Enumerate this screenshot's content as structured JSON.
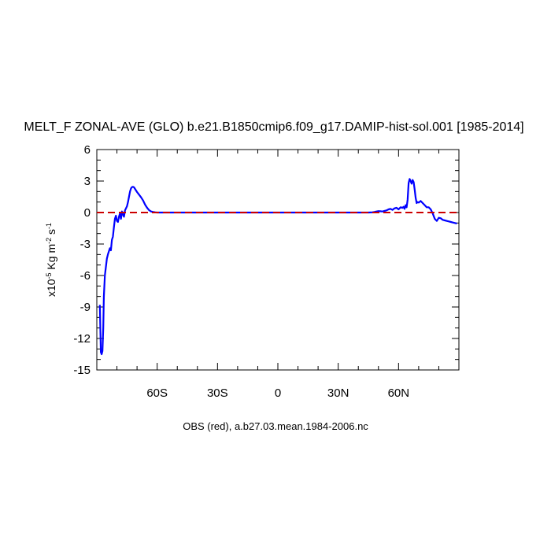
{
  "chart_data": {
    "type": "line",
    "title": "MELT_F ZONAL-AVE (GLO) b.e21.B1850cmip6.f09_g17.DAMIP-hist-sol.001 [1985-2014]",
    "ylabel": "x10",
    "ylabel_exponent": "-5",
    "ylabel_units": " Kg m",
    "ylabel_units_exponent": "-2",
    "ylabel_units_tail": " s",
    "ylabel_units_tail_exponent": "-1",
    "xlim": [
      -90,
      90
    ],
    "ylim": [
      -15,
      6
    ],
    "x_ticks": [
      {
        "value": -60,
        "label": "60S"
      },
      {
        "value": -30,
        "label": "30S"
      },
      {
        "value": 0,
        "label": "0"
      },
      {
        "value": 30,
        "label": "30N"
      },
      {
        "value": 60,
        "label": "60N"
      }
    ],
    "y_ticks": [
      {
        "value": 6,
        "label": "6"
      },
      {
        "value": 3,
        "label": "3"
      },
      {
        "value": 0,
        "label": "0"
      },
      {
        "value": -3,
        "label": "-3"
      },
      {
        "value": -6,
        "label": "-6"
      },
      {
        "value": -9,
        "label": "-9"
      },
      {
        "value": -12,
        "label": "-12"
      },
      {
        "value": -15,
        "label": "-15"
      }
    ],
    "footer": "OBS (red), a.b27.03.mean.1984-2006.nc",
    "series": [
      {
        "color": "#0000ff",
        "style": "solid",
        "x": [
          -88.5,
          -88.0,
          -87.6,
          -87.2,
          -86.8,
          -86.5,
          -86.0,
          -85.5,
          -85.0,
          -84.5,
          -84.0,
          -83.5,
          -83.0,
          -82.5,
          -82.0,
          -81.5,
          -81.0,
          -80.5,
          -80.0,
          -79.5,
          -79.0,
          -78.5,
          -78.0,
          -77.5,
          -77.0,
          -76.5,
          -76.0,
          -75.5,
          -75.0,
          -74.5,
          -74.0,
          -73.5,
          -73.0,
          -72.5,
          -72.0,
          -71.5,
          -71.0,
          -70.5,
          -70.0,
          -69.0,
          -68.0,
          -67.0,
          -66.0,
          -65.0,
          -64.0,
          -63.0,
          -62.0,
          -61.0,
          -60.0,
          -59.0,
          -58.0,
          -57.0,
          -56.0,
          -55.0,
          -54.0,
          -53.0,
          -52.0,
          -50.0,
          -40.0,
          -20.0,
          0.0,
          20.0,
          40.0,
          45.0,
          47.0,
          48.0,
          49.0,
          50.0,
          51.0,
          52.0,
          53.0,
          54.0,
          55.0,
          56.0,
          57.0,
          58.0,
          59.0,
          60.0,
          61.0,
          62.0,
          62.5,
          63.0,
          63.5,
          64.0,
          64.5,
          65.0,
          65.5,
          66.0,
          66.5,
          67.0,
          67.5,
          68.0,
          68.5,
          69.0,
          69.5,
          70.0,
          71.0,
          72.0,
          73.0,
          74.0,
          75.0,
          76.0,
          77.0,
          78.0,
          79.0,
          80.0,
          81.0,
          82.0,
          83.0,
          84.0,
          85.0,
          86.0,
          87.0,
          88.0,
          89.0
        ],
        "y": [
          -8.8,
          -13.3,
          -13.5,
          -13.2,
          -11.0,
          -8.0,
          -6.0,
          -5.2,
          -4.4,
          -4.0,
          -3.7,
          -3.4,
          -3.6,
          -2.6,
          -2.3,
          -1.4,
          -0.6,
          -0.3,
          -0.8,
          -0.9,
          -0.4,
          -0.1,
          -0.6,
          0.1,
          -0.2,
          -0.4,
          0.2,
          0.4,
          0.6,
          1.0,
          1.5,
          2.0,
          2.3,
          2.42,
          2.45,
          2.4,
          2.25,
          2.1,
          1.95,
          1.7,
          1.45,
          1.15,
          0.75,
          0.45,
          0.22,
          0.1,
          0.05,
          0.02,
          0.0,
          0.0,
          0.0,
          0.0,
          0.0,
          0.0,
          0.0,
          0.0,
          0.0,
          0.0,
          0.0,
          0.0,
          0.0,
          0.0,
          0.0,
          0.0,
          0.02,
          0.05,
          0.1,
          0.13,
          0.12,
          0.1,
          0.15,
          0.2,
          0.3,
          0.35,
          0.25,
          0.4,
          0.45,
          0.3,
          0.5,
          0.45,
          0.55,
          0.35,
          0.7,
          0.5,
          1.2,
          2.8,
          3.2,
          3.0,
          2.75,
          3.1,
          2.9,
          2.2,
          1.4,
          0.9,
          1.0,
          0.95,
          1.1,
          0.9,
          0.7,
          0.5,
          0.5,
          0.3,
          -0.1,
          -0.6,
          -0.8,
          -0.5,
          -0.55,
          -0.7,
          -0.75,
          -0.8,
          -0.85,
          -0.9,
          -0.95,
          -1.0,
          -1.05
        ]
      },
      {
        "color": "#cc0000",
        "style": "dashed",
        "x": [
          -90,
          90
        ],
        "y": [
          0,
          0
        ]
      }
    ]
  }
}
